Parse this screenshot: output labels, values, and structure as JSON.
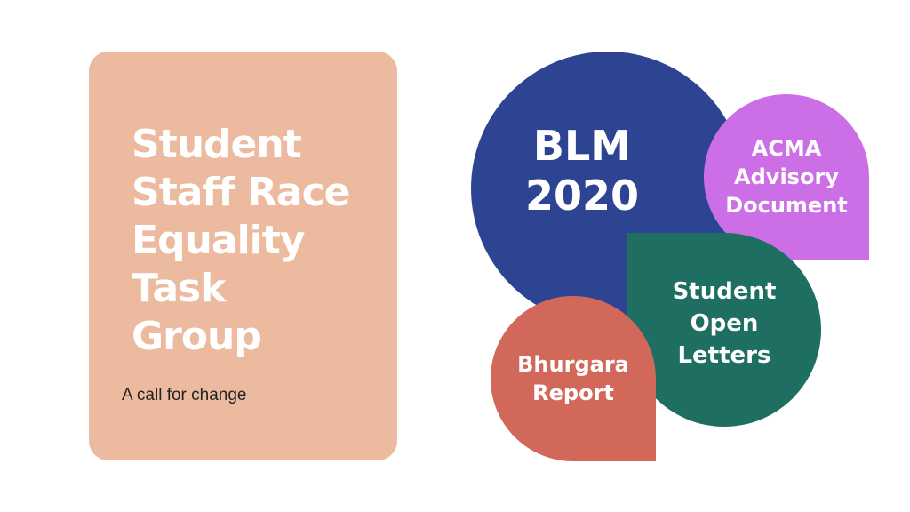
{
  "card": {
    "title_lines": [
      "Student",
      "Staff Race",
      "Equality",
      "Task",
      "Group"
    ],
    "subtitle": "A call for change"
  },
  "blobs": {
    "blm": {
      "lines": [
        "BLM",
        "2020"
      ]
    },
    "acma": {
      "lines": [
        "ACMA",
        "Advisory",
        "Document"
      ]
    },
    "student_letters": {
      "lines": [
        "Student",
        "Open",
        "Letters"
      ]
    },
    "bhurgara": {
      "lines": [
        "Bhurgara",
        "Report"
      ]
    }
  },
  "colors": {
    "card": "#ecbb9f",
    "blm": "#2d4493",
    "acma": "#cc6fe6",
    "student_letters": "#1e6e61",
    "bhurgara": "#d2685a"
  }
}
